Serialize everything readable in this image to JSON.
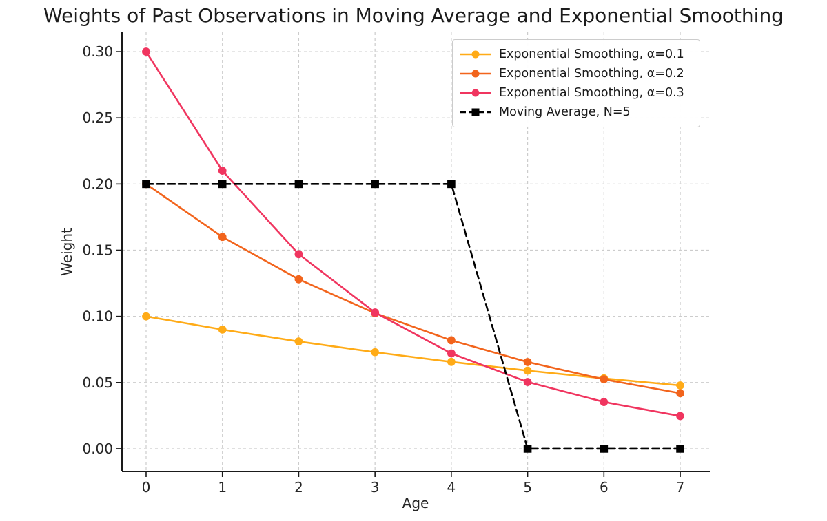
{
  "chart_data": {
    "type": "line",
    "title": "Weights of Past Observations in Moving Average and Exponential Smoothing",
    "xlabel": "Age",
    "ylabel": "Weight",
    "x": [
      0,
      1,
      2,
      3,
      4,
      5,
      6,
      7
    ],
    "series": [
      {
        "name": "Exponential Smoothing, α=0.1",
        "color": "#FFAB17",
        "marker": "circle",
        "dash": "solid",
        "values": [
          0.1,
          0.09,
          0.081,
          0.0729,
          0.0656,
          0.059,
          0.0531,
          0.0478
        ]
      },
      {
        "name": "Exponential Smoothing, α=0.2",
        "color": "#F2641C",
        "marker": "circle",
        "dash": "solid",
        "values": [
          0.2,
          0.16,
          0.128,
          0.1024,
          0.0819,
          0.0655,
          0.0524,
          0.0419
        ]
      },
      {
        "name": "Exponential Smoothing, α=0.3",
        "color": "#F0355F",
        "marker": "circle",
        "dash": "solid",
        "values": [
          0.3,
          0.21,
          0.147,
          0.1029,
          0.072,
          0.0504,
          0.0353,
          0.0247
        ]
      },
      {
        "name": "Moving Average, N=5",
        "color": "#000000",
        "marker": "square",
        "dash": "dashed",
        "values": [
          0.2,
          0.2,
          0.2,
          0.2,
          0.2,
          0.0,
          0.0,
          0.0
        ]
      }
    ],
    "xticks": {
      "values": [
        0,
        1,
        2,
        3,
        4,
        5,
        6,
        7
      ],
      "labels": [
        "0",
        "1",
        "2",
        "3",
        "4",
        "5",
        "6",
        "7"
      ]
    },
    "yticks": {
      "values": [
        0.0,
        0.05,
        0.1,
        0.15,
        0.2,
        0.25,
        0.3
      ],
      "labels": [
        "0.00",
        "0.05",
        "0.10",
        "0.15",
        "0.20",
        "0.25",
        "0.30"
      ]
    },
    "xlim": [
      -0.316,
      7.388
    ],
    "ylim": [
      -0.0172,
      0.3146
    ],
    "grid": true,
    "grid_color": "#cccccc",
    "axis_color": "#1a1a1a",
    "legend_position": "upper right"
  }
}
